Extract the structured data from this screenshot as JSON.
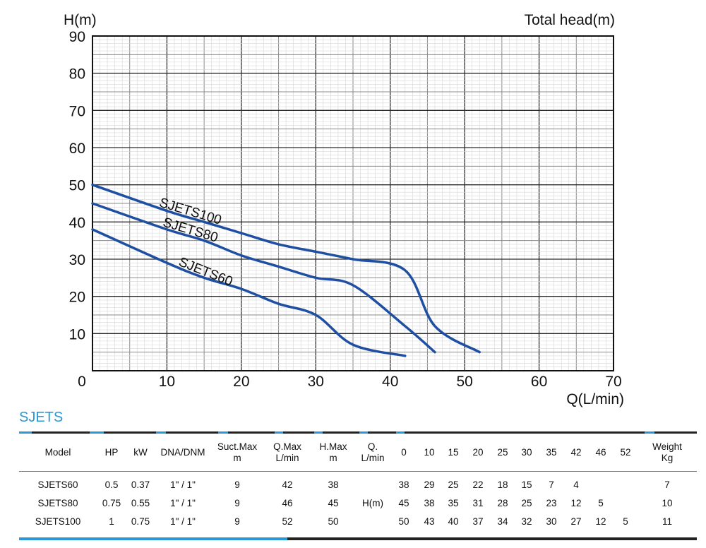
{
  "chart_data": {
    "type": "line",
    "ylabel": "H(m)",
    "title": "Total head(m)",
    "xlabel": "Q(L/min)",
    "xlim": [
      0,
      70
    ],
    "ylim": [
      0,
      90
    ],
    "x_ticks": [
      "0",
      "10",
      "20",
      "30",
      "40",
      "50",
      "60",
      "70"
    ],
    "y_ticks": [
      "10",
      "20",
      "30",
      "40",
      "50",
      "60",
      "70",
      "80",
      "90"
    ],
    "grid": true,
    "line_color": "#1f4fa3",
    "series": [
      {
        "name": "SJETS100",
        "x": [
          0,
          10,
          15,
          20,
          25,
          30,
          35,
          42,
          46,
          52
        ],
        "y": [
          50,
          43,
          40,
          37,
          34,
          32,
          30,
          27,
          12,
          5
        ]
      },
      {
        "name": "SJETS80",
        "x": [
          0,
          10,
          15,
          20,
          25,
          30,
          35,
          42,
          46
        ],
        "y": [
          45,
          38,
          35,
          31,
          28,
          25,
          23,
          12,
          5
        ]
      },
      {
        "name": "SJETS60",
        "x": [
          0,
          10,
          15,
          20,
          25,
          30,
          35,
          42
        ],
        "y": [
          38,
          29,
          25,
          22,
          18,
          15,
          7,
          4
        ]
      }
    ]
  },
  "section_title": "SJETS",
  "table": {
    "headers": [
      "Model",
      "HP",
      "kW",
      "DNA/DNM",
      "Suct.Max\nm",
      "Q.Max\nL/min",
      "H.Max\nm",
      "Q.\nL/min",
      "0",
      "10",
      "15",
      "20",
      "25",
      "30",
      "35",
      "42",
      "46",
      "52",
      "Weight\nKg"
    ],
    "rows": [
      [
        "SJETS60",
        "0.5",
        "0.37",
        "1\" / 1\"",
        "9",
        "42",
        "38",
        "",
        "38",
        "29",
        "25",
        "22",
        "18",
        "15",
        "7",
        "4",
        "",
        "",
        "7"
      ],
      [
        "SJETS80",
        "0.75",
        "0.55",
        "1\" / 1\"",
        "9",
        "46",
        "45",
        "H(m)",
        "45",
        "38",
        "35",
        "31",
        "28",
        "25",
        "23",
        "12",
        "5",
        "",
        "10"
      ],
      [
        "SJETS100",
        "1",
        "0.75",
        "1\" / 1\"",
        "9",
        "52",
        "50",
        "",
        "50",
        "43",
        "40",
        "37",
        "34",
        "32",
        "30",
        "27",
        "12",
        "5",
        "11"
      ]
    ]
  },
  "colors": {
    "accent": "#2a97d6",
    "curve": "#1f4fa3",
    "grid": "#999999"
  }
}
